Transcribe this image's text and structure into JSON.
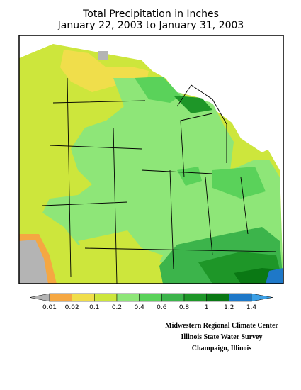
{
  "header": {
    "title_line1": "Total Precipitation in Inches",
    "title_line2": "January 22, 2003 to January 31, 2003"
  },
  "legend": {
    "colors": [
      "#b4b4b4",
      "#f5a742",
      "#f0de4b",
      "#cde63c",
      "#8ee678",
      "#5ad25a",
      "#3cb44b",
      "#1e9628",
      "#0a7814",
      "#1e78c8",
      "#3ca0e6"
    ],
    "labels": [
      "0.01",
      "0.02",
      "0.1",
      "0.2",
      "0.4",
      "0.6",
      "0.8",
      "1",
      "1.2",
      "1.4"
    ]
  },
  "credits": [
    "Midwestern Regional Climate Center",
    "Illinois State Water Survey",
    "Champaign, Illinois"
  ]
}
